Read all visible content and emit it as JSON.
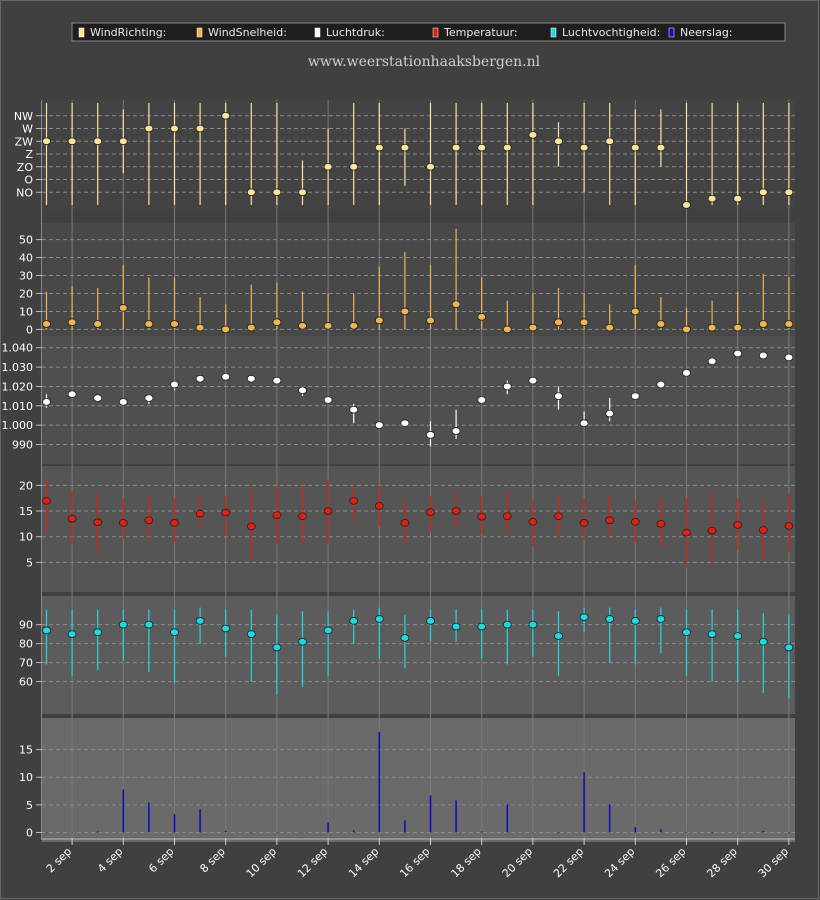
{
  "site_title": "www.weerstationhaaksbergen.nl",
  "legend": [
    {
      "label": "WindRichting:",
      "color": "#ffe39a"
    },
    {
      "label": "WindSnelheid:",
      "color": "#f0b450"
    },
    {
      "label": "Luchtdruk:",
      "color": "#ffffff"
    },
    {
      "label": "Temperatuur:",
      "color": "#e02010"
    },
    {
      "label": "Luchtvochtigheid:",
      "color": "#20d8e0"
    },
    {
      "label": "Neerslag:",
      "color": "#1010c0"
    }
  ],
  "chart_data": {
    "type": "scatter",
    "x": [
      "1 sep",
      "2 sep",
      "3 sep",
      "4 sep",
      "5 sep",
      "6 sep",
      "7 sep",
      "8 sep",
      "9 sep",
      "10 sep",
      "11 sep",
      "12 sep",
      "13 sep",
      "14 sep",
      "15 sep",
      "16 sep",
      "17 sep",
      "18 sep",
      "19 sep",
      "20 sep",
      "21 sep",
      "22 sep",
      "23 sep",
      "24 sep",
      "25 sep",
      "26 sep",
      "27 sep",
      "28 sep",
      "29 sep",
      "30 sep"
    ],
    "x_tick_labels": [
      "2 sep",
      "4 sep",
      "6 sep",
      "8 sep",
      "10 sep",
      "12 sep",
      "14 sep",
      "16 sep",
      "18 sep",
      "20 sep",
      "22 sep",
      "24 sep",
      "26 sep",
      "28 sep",
      "30 sep"
    ],
    "grid": true,
    "panels": [
      {
        "name": "WindRichting",
        "color": "#ffe39a",
        "tick_labels": [
          "NW",
          "W",
          "ZW",
          "Z",
          "ZO",
          "O",
          "NO"
        ],
        "tick_values": [
          7,
          6,
          5,
          4,
          3,
          2,
          1
        ],
        "ylim": [
          0,
          8
        ],
        "values": [
          5,
          5,
          5,
          5,
          6,
          6,
          6,
          7,
          1,
          1,
          1,
          3,
          3,
          4.5,
          4.5,
          3,
          4.5,
          4.5,
          4.5,
          5.5,
          5,
          4.5,
          5,
          4.5,
          4.5,
          0,
          0.5,
          0.5,
          1,
          1
        ],
        "low": [
          0,
          0,
          0,
          2.5,
          0,
          0,
          0,
          0,
          0,
          0,
          0,
          0,
          0,
          0,
          1.5,
          0,
          0,
          0,
          0,
          0,
          3,
          1,
          0,
          0,
          3,
          0,
          0,
          0,
          0,
          0
        ],
        "high": [
          8,
          8,
          8,
          7.5,
          8,
          8,
          8,
          8,
          8,
          8,
          3.5,
          6,
          8,
          8,
          6,
          8,
          8,
          8,
          8,
          8,
          6.5,
          8,
          8,
          7.5,
          7.5,
          8,
          8,
          8,
          8,
          8
        ]
      },
      {
        "name": "WindSnelheid",
        "color": "#f0b450",
        "tick_labels": [
          "50",
          "40",
          "30",
          "20",
          "10",
          "0"
        ],
        "tick_values": [
          50,
          40,
          30,
          20,
          10,
          0
        ],
        "ylim": [
          -2,
          57
        ],
        "values": [
          3,
          4,
          3,
          12,
          3,
          3,
          1,
          0,
          1,
          4,
          2,
          2,
          2,
          5,
          10,
          5,
          14,
          7,
          0,
          1,
          4,
          4,
          1,
          10,
          3,
          0,
          1,
          1,
          3,
          3
        ],
        "low": [
          0,
          0,
          0,
          0,
          0,
          0,
          0,
          0,
          0,
          0,
          0,
          0,
          0,
          0,
          0,
          0,
          0,
          0,
          0,
          0,
          0,
          0,
          0,
          0,
          0,
          0,
          0,
          0,
          0,
          0
        ],
        "high": [
          21,
          24,
          23,
          36,
          29,
          29,
          18,
          14,
          25,
          26,
          21,
          20,
          20,
          35,
          43,
          36,
          56,
          29,
          16,
          20,
          23,
          20,
          14,
          36,
          18,
          12,
          16,
          21,
          31,
          29
        ]
      },
      {
        "name": "Luchtdruk",
        "color": "#ffffff",
        "tick_labels": [
          "1.040",
          "1.030",
          "1.020",
          "1.010",
          "1.000",
          "990"
        ],
        "tick_values": [
          1040,
          1030,
          1020,
          1010,
          1000,
          990
        ],
        "ylim": [
          982,
          1044
        ],
        "values": [
          1012,
          1016,
          1014,
          1012,
          1014,
          1021,
          1024,
          1025,
          1024,
          1023,
          1018,
          1013,
          1008,
          1000,
          1001,
          995,
          997,
          1013,
          1020,
          1023,
          1015,
          1001,
          1006,
          1015,
          1021,
          1027,
          1033,
          1037,
          1036,
          1035
        ],
        "low": [
          1009,
          1015,
          1013,
          1010,
          1011,
          1018,
          1022,
          1023,
          1023,
          1021,
          1015,
          1011,
          1001,
          999,
          1000,
          989,
          993,
          1011,
          1016,
          1021,
          1008,
          999,
          1002,
          1014,
          1019,
          1025,
          1031,
          1036,
          1035,
          1034
        ],
        "high": [
          1016,
          1017,
          1015,
          1013,
          1016,
          1023,
          1026,
          1027,
          1025,
          1024,
          1020,
          1014,
          1011,
          1001,
          1002,
          1002,
          1008,
          1015,
          1023,
          1024,
          1020,
          1007,
          1014,
          1016,
          1022,
          1029,
          1035,
          1038,
          1037,
          1036
        ]
      },
      {
        "name": "Temperatuur",
        "color": "#e02010",
        "tick_labels": [
          "20",
          "15",
          "10",
          "5"
        ],
        "tick_values": [
          20,
          15,
          10,
          5
        ],
        "ylim": [
          0,
          23
        ],
        "values": [
          17,
          13.5,
          12.8,
          12.7,
          13.2,
          12.7,
          14.5,
          14.7,
          12,
          14.2,
          14,
          15,
          17,
          16,
          12.7,
          14.8,
          15,
          13.9,
          14,
          12.9,
          14,
          12.7,
          13.2,
          12.9,
          12.5,
          10.8,
          11.2,
          12.3,
          11.3,
          12.1
        ],
        "low": [
          11,
          8.5,
          7,
          9.5,
          9.5,
          9,
          11.5,
          10,
          5.5,
          8.5,
          9,
          8.5,
          13,
          12,
          9,
          11,
          11.5,
          10.5,
          10.5,
          8,
          10,
          9.5,
          10,
          9,
          8,
          4,
          4.5,
          7.5,
          5.5,
          7
        ],
        "high": [
          21.5,
          19,
          18.5,
          17.5,
          18,
          17.5,
          18,
          18,
          19.5,
          20,
          20,
          21,
          20,
          20,
          17,
          18,
          18.5,
          18,
          19,
          17,
          18.5,
          17.5,
          18,
          17,
          17.5,
          17.5,
          18.5,
          17.5,
          17,
          18.5
        ]
      },
      {
        "name": "Luchtvochtigheid",
        "color": "#20d8e0",
        "tick_labels": [
          "90",
          "80",
          "70",
          "60"
        ],
        "tick_values": [
          90,
          80,
          70,
          60
        ],
        "ylim": [
          45,
          103
        ],
        "values": [
          87,
          85,
          86,
          90,
          90,
          86,
          92,
          88,
          85,
          78,
          81,
          87,
          92,
          93,
          83,
          92,
          89,
          89,
          90,
          90,
          84,
          94,
          93,
          92,
          93,
          86,
          85,
          84,
          81,
          78
        ],
        "low": [
          69,
          63,
          66,
          71,
          65,
          59,
          80,
          73,
          60,
          53,
          57,
          63,
          80,
          72,
          67,
          81,
          81,
          72,
          69,
          73,
          63,
          86,
          70,
          69,
          75,
          63,
          60,
          60,
          54,
          51
        ],
        "high": [
          98,
          98,
          98,
          98,
          98,
          98,
          99,
          98,
          98,
          95,
          97,
          97,
          98,
          99,
          95,
          98,
          98,
          98,
          98,
          98,
          97,
          99,
          99,
          98,
          99,
          98,
          98,
          98,
          96,
          95
        ]
      },
      {
        "name": "Neerslag",
        "color": "#1010c0",
        "type": "bar",
        "tick_labels": [
          "15",
          "10",
          "5",
          "0"
        ],
        "tick_values": [
          15,
          10,
          5,
          0
        ],
        "ylim": [
          -1,
          20
        ],
        "values": [
          0,
          0.1,
          0.2,
          7.8,
          5.4,
          3.3,
          4.2,
          0.3,
          0,
          0,
          0,
          1.8,
          0.4,
          18.2,
          2.2,
          6.7,
          5.8,
          0.2,
          5.1,
          0,
          0,
          10.9,
          5.1,
          1,
          0.6,
          0.1,
          0,
          0,
          0.3,
          0
        ]
      }
    ]
  }
}
